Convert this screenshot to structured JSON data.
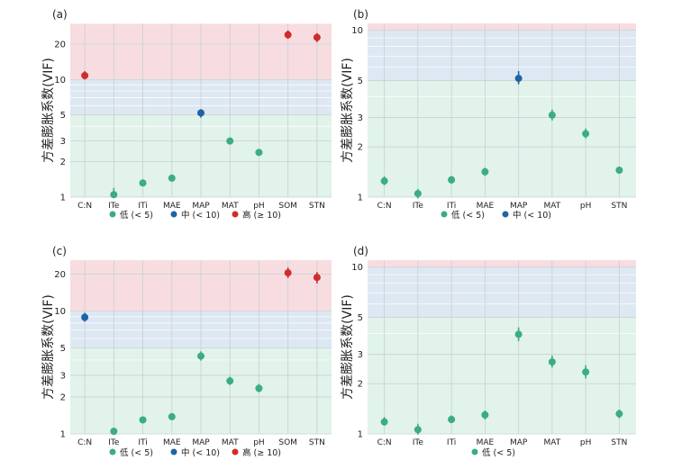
{
  "chart_data": [
    {
      "panel": "(a)",
      "type": "scatter",
      "ylabel": "方差膨胀系数(VIF)",
      "yscale": "log",
      "ylim": [
        1,
        30
      ],
      "yticks": [
        1,
        2,
        3,
        5,
        10,
        20
      ],
      "bands": [
        {
          "from": 1,
          "to": 5,
          "color": "#e1f3ea"
        },
        {
          "from": 5,
          "to": 10,
          "color": "#dde8f3"
        },
        {
          "from": 10,
          "to": 30,
          "color": "#f7dde0"
        }
      ],
      "categories": [
        "C:N",
        "ITe",
        "ITi",
        "MAE",
        "MAP",
        "MAT",
        "pH",
        "SOM",
        "STN"
      ],
      "values": [
        10.8,
        1.05,
        1.32,
        1.45,
        5.2,
        3.0,
        2.4,
        24.0,
        22.8
      ],
      "err_low": [
        10.0,
        0.98,
        1.25,
        1.38,
        4.75,
        2.82,
        2.25,
        22.2,
        20.8
      ],
      "err_high": [
        11.8,
        1.2,
        1.38,
        1.5,
        5.6,
        3.2,
        2.55,
        26.2,
        24.8
      ],
      "groups": [
        "high",
        "low",
        "low",
        "low",
        "mid",
        "low",
        "low",
        "high",
        "high"
      ],
      "legend": [
        {
          "key": "low",
          "label": "低 (< 5)",
          "color": "#3aad82"
        },
        {
          "key": "mid",
          "label": "中 (< 10)",
          "color": "#1c64a5"
        },
        {
          "key": "high",
          "label": "高 (≥ 10)",
          "color": "#cf2d2d"
        }
      ]
    },
    {
      "panel": "(b)",
      "type": "scatter",
      "ylabel": "方差膨胀系数(VIF)",
      "yscale": "log",
      "ylim": [
        1,
        11
      ],
      "yticks": [
        1,
        2,
        3,
        5,
        10
      ],
      "bands": [
        {
          "from": 1,
          "to": 5,
          "color": "#e1f3ea"
        },
        {
          "from": 5,
          "to": 10,
          "color": "#dde8f3"
        },
        {
          "from": 10,
          "to": 11,
          "color": "#f7dde0"
        }
      ],
      "categories": [
        "C:N",
        "ITe",
        "ITi",
        "MAE",
        "MAP",
        "MAT",
        "pH",
        "STN"
      ],
      "values": [
        1.25,
        1.05,
        1.27,
        1.42,
        5.15,
        3.1,
        2.4,
        1.45
      ],
      "err_low": [
        1.18,
        0.98,
        1.2,
        1.34,
        4.75,
        2.88,
        2.25,
        1.38
      ],
      "err_high": [
        1.33,
        1.12,
        1.34,
        1.5,
        5.7,
        3.35,
        2.58,
        1.52
      ],
      "groups": [
        "low",
        "low",
        "low",
        "low",
        "mid",
        "low",
        "low",
        "low"
      ],
      "legend": [
        {
          "key": "low",
          "label": "低 (< 5)",
          "color": "#3aad82"
        },
        {
          "key": "mid",
          "label": "中 (< 10)",
          "color": "#1c64a5"
        }
      ]
    },
    {
      "panel": "(c)",
      "type": "scatter",
      "ylabel": "方差膨胀系数(VIF)",
      "yscale": "log",
      "ylim": [
        1,
        26
      ],
      "yticks": [
        1,
        2,
        3,
        5,
        10,
        20
      ],
      "bands": [
        {
          "from": 1,
          "to": 5,
          "color": "#e1f3ea"
        },
        {
          "from": 5,
          "to": 10,
          "color": "#dde8f3"
        },
        {
          "from": 10,
          "to": 26,
          "color": "#f7dde0"
        }
      ],
      "categories": [
        "C:N",
        "ITe",
        "ITi",
        "MAE",
        "MAP",
        "MAT",
        "pH",
        "SOM",
        "STN"
      ],
      "values": [
        8.9,
        1.05,
        1.3,
        1.38,
        4.3,
        2.7,
        2.35,
        20.5,
        18.8
      ],
      "err_low": [
        8.2,
        0.98,
        1.22,
        1.3,
        3.95,
        2.5,
        2.18,
        18.6,
        16.8
      ],
      "err_high": [
        9.7,
        1.12,
        1.37,
        1.45,
        4.7,
        2.92,
        2.55,
        22.6,
        20.8
      ],
      "groups": [
        "mid",
        "low",
        "low",
        "low",
        "low",
        "low",
        "low",
        "high",
        "high"
      ],
      "legend": [
        {
          "key": "low",
          "label": "低 (< 5)",
          "color": "#3aad82"
        },
        {
          "key": "mid",
          "label": "中 (< 10)",
          "color": "#1c64a5"
        },
        {
          "key": "high",
          "label": "高 (≥ 10)",
          "color": "#cf2d2d"
        }
      ]
    },
    {
      "panel": "(d)",
      "type": "scatter",
      "ylabel": "方差膨胀系数(VIF)",
      "yscale": "log",
      "ylim": [
        1,
        11
      ],
      "yticks": [
        1,
        2,
        3,
        5,
        10
      ],
      "bands": [
        {
          "from": 1,
          "to": 5,
          "color": "#e1f3ea"
        },
        {
          "from": 5,
          "to": 10,
          "color": "#dde8f3"
        },
        {
          "from": 10,
          "to": 11,
          "color": "#f7dde0"
        }
      ],
      "categories": [
        "C:N",
        "ITe",
        "ITi",
        "MAE",
        "MAP",
        "MAT",
        "pH",
        "STN"
      ],
      "values": [
        1.18,
        1.06,
        1.22,
        1.3,
        3.95,
        2.7,
        2.35,
        1.32
      ],
      "err_low": [
        1.12,
        0.99,
        1.16,
        1.22,
        3.6,
        2.5,
        2.15,
        1.24
      ],
      "err_high": [
        1.26,
        1.15,
        1.29,
        1.38,
        4.35,
        2.95,
        2.58,
        1.4
      ],
      "groups": [
        "low",
        "low",
        "low",
        "low",
        "low",
        "low",
        "low",
        "low"
      ],
      "legend": [
        {
          "key": "low",
          "label": "低 (< 5)",
          "color": "#3aad82"
        }
      ]
    }
  ]
}
